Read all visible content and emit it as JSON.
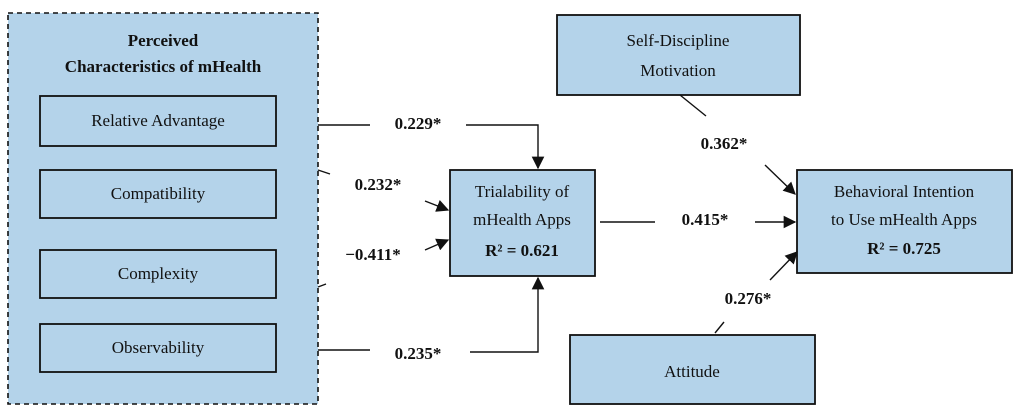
{
  "group": {
    "title_lines": [
      "Perceived",
      "Characteristics of mHealth"
    ],
    "items": [
      "Relative Advantage",
      "Compatibility",
      "Complexity",
      "Observability"
    ]
  },
  "nodes": [
    {
      "lines": [
        "Trialability of",
        "mHealth Apps",
        "R² = 0.621"
      ]
    },
    {
      "lines": [
        "Self-Discipline",
        "Motivation"
      ]
    },
    {
      "lines": [
        "Behavioral Intention",
        "to Use mHealth Apps",
        "R² = 0.725"
      ]
    },
    {
      "lines": [
        "Attitude"
      ]
    }
  ],
  "paths": [
    "0.229*",
    "0.232*",
    "−0.411*",
    "0.235*",
    "0.415*",
    "0.362*",
    "0.276*"
  ]
}
